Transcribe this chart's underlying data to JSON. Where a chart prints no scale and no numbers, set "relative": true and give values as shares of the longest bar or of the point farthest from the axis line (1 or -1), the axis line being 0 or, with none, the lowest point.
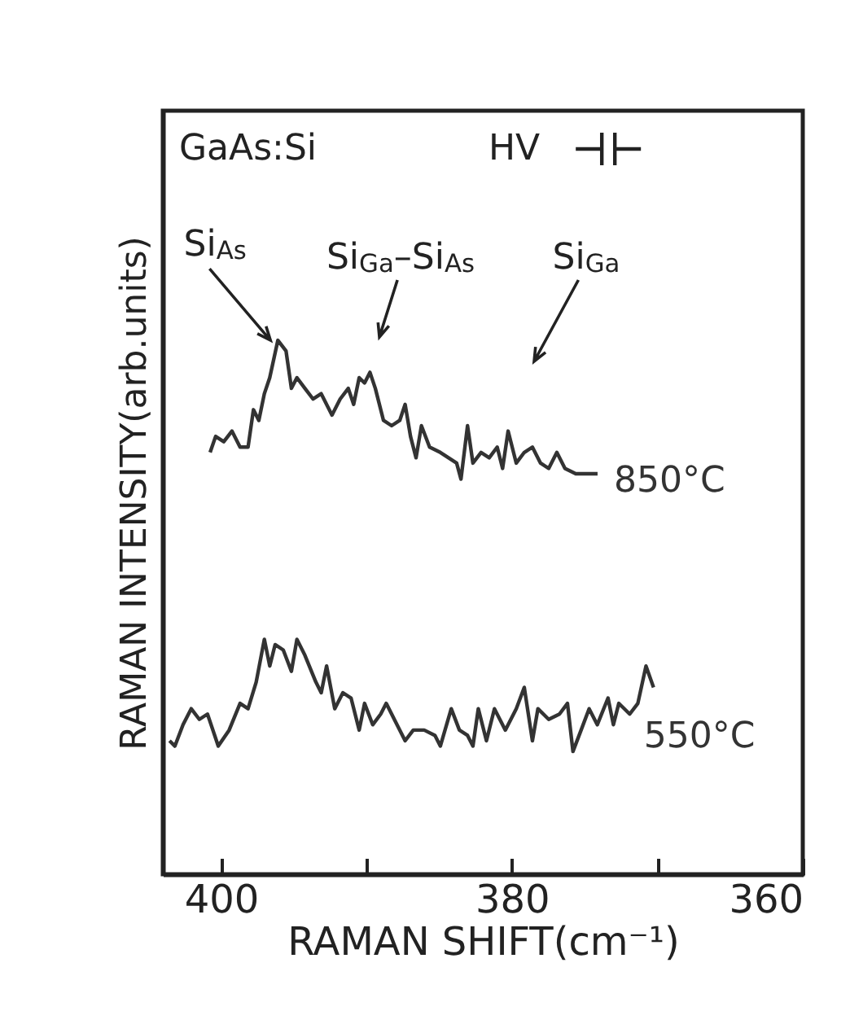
{
  "chart_data": {
    "type": "line",
    "relative": true,
    "xlabel": "RAMAN SHIFT(cm⁻¹)",
    "ylabel": "RAMAN INTENSITY(arb.units)",
    "xlim": [
      404,
      360
    ],
    "xticks": [
      400,
      {
        "value": 390,
        "label": null
      },
      380,
      {
        "value": 370,
        "label": null
      },
      360
    ],
    "legend": false,
    "grid": false,
    "line_style": "solid",
    "annotations": [
      "GaAs:Si",
      "HV",
      {
        "text": "Si$_{As}$",
        "x": 396.6,
        "y": 1.0
      },
      "Si$_{Ga}$–Si$_{As}$",
      "Si$_{Ga}$"
    ],
    "series": [
      {
        "name": "850°C",
        "color": "#333333",
        "x": [
          400.75,
          400.37,
          399.81,
          399.25,
          398.69,
          398.14,
          397.77,
          397.4,
          397.02,
          396.65,
          396.09,
          395.53,
          395.16,
          394.78,
          394.23,
          393.67,
          393.11,
          392.37,
          391.81,
          391.25,
          390.88,
          390.5,
          390.13,
          389.76,
          389.39,
          388.83,
          388.27,
          387.71,
          387.34,
          386.97,
          386.59,
          386.22,
          385.66,
          384.92,
          384.36,
          383.8,
          383.5,
          383.05,
          382.68,
          382.12,
          381.56,
          381.01,
          380.64,
          380.26,
          379.7,
          379.15,
          378.59,
          378.03,
          377.47,
          376.91,
          376.35,
          375.61,
          374.86,
          374.11
        ],
        "values": [
          0.79,
          0.82,
          0.81,
          0.83,
          0.8,
          0.8,
          0.87,
          0.85,
          0.9,
          0.93,
          1.0,
          0.98,
          0.91,
          0.93,
          0.91,
          0.89,
          0.9,
          0.86,
          0.89,
          0.91,
          0.88,
          0.93,
          0.92,
          0.94,
          0.91,
          0.85,
          0.84,
          0.85,
          0.88,
          0.82,
          0.78,
          0.84,
          0.8,
          0.79,
          0.78,
          0.77,
          0.74,
          0.84,
          0.77,
          0.79,
          0.78,
          0.8,
          0.76,
          0.83,
          0.77,
          0.79,
          0.8,
          0.77,
          0.76,
          0.79,
          0.76,
          0.75,
          0.75,
          0.75
        ]
      },
      {
        "name": "550°C",
        "color": "#333333",
        "x": [
          403.54,
          403.17,
          402.61,
          402.05,
          401.49,
          400.93,
          400.19,
          399.44,
          398.69,
          398.14,
          397.58,
          397.02,
          396.65,
          396.28,
          395.72,
          395.16,
          394.78,
          394.23,
          393.48,
          393.11,
          392.74,
          392.18,
          391.62,
          391.06,
          390.5,
          390.13,
          389.57,
          389.02,
          388.64,
          387.9,
          387.34,
          386.78,
          386.03,
          385.29,
          384.92,
          384.17,
          383.61,
          383.05,
          382.68,
          382.31,
          381.75,
          381.2,
          380.45,
          379.7,
          379.15,
          378.59,
          378.21,
          377.47,
          376.73,
          376.18,
          375.8,
          375.24,
          374.69,
          374.13,
          373.39,
          373.02,
          372.65,
          371.9,
          371.34,
          370.78,
          370.26
        ],
        "values": [
          0.25,
          0.24,
          0.28,
          0.31,
          0.29,
          0.3,
          0.24,
          0.27,
          0.32,
          0.31,
          0.36,
          0.44,
          0.39,
          0.43,
          0.42,
          0.38,
          0.44,
          0.41,
          0.36,
          0.34,
          0.39,
          0.31,
          0.34,
          0.33,
          0.27,
          0.32,
          0.28,
          0.3,
          0.32,
          0.28,
          0.25,
          0.27,
          0.27,
          0.26,
          0.24,
          0.31,
          0.27,
          0.26,
          0.24,
          0.31,
          0.25,
          0.31,
          0.27,
          0.31,
          0.35,
          0.25,
          0.31,
          0.29,
          0.3,
          0.32,
          0.23,
          0.27,
          0.31,
          0.28,
          0.33,
          0.28,
          0.32,
          0.3,
          0.32,
          0.39,
          0.35
        ]
      }
    ]
  }
}
